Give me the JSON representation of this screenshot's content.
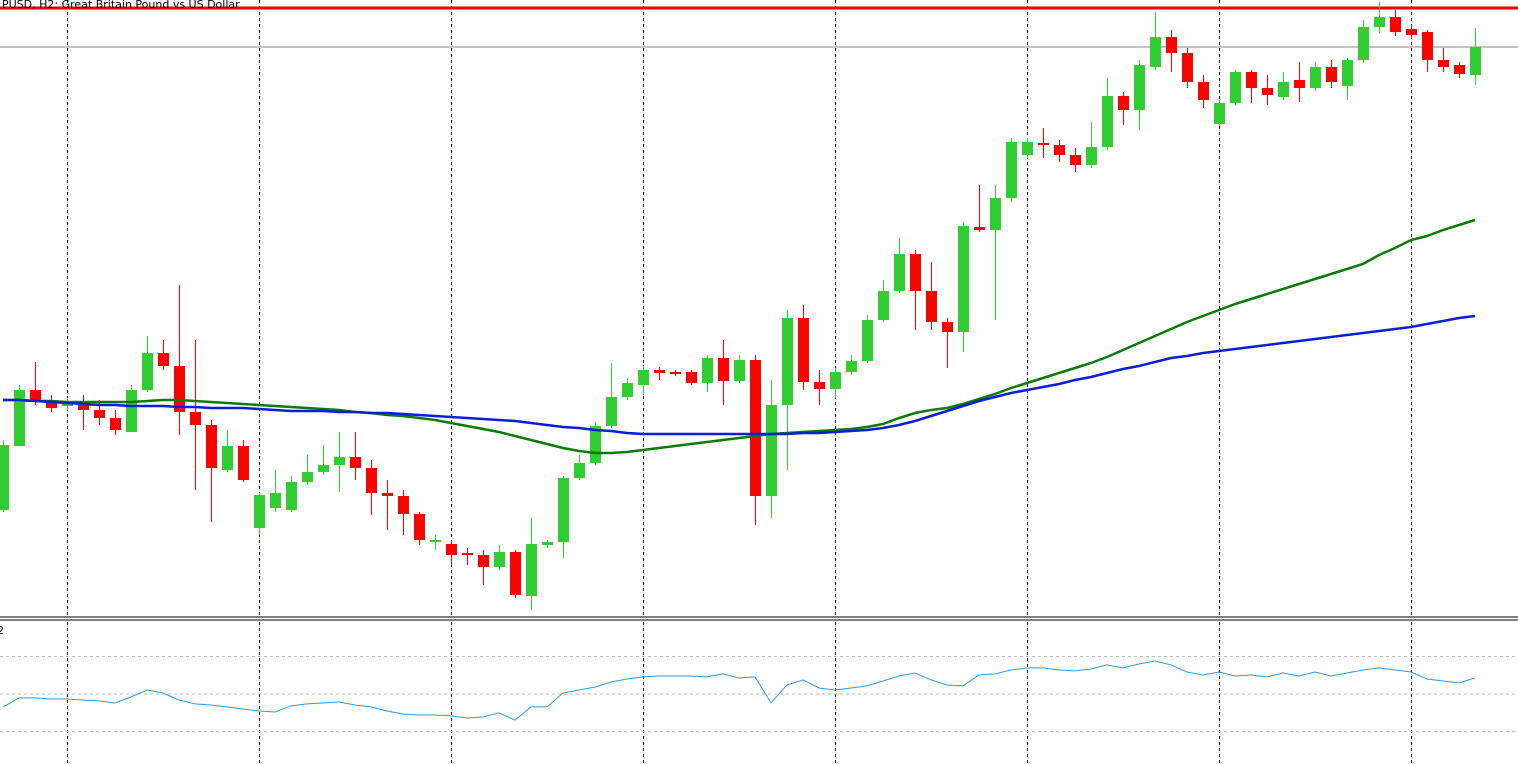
{
  "chart_data": [
    {
      "type": "candlestick",
      "title": "PUSD, H2: Great Britain Pound vs US Dollar",
      "up_color": "#32cd32",
      "down_color": "#ff0000",
      "ylim": [
        385,
        1000
      ],
      "grid": true,
      "open": [
        490,
        554,
        610,
        598,
        594,
        597,
        590,
        582,
        568,
        610,
        647,
        634,
        588,
        575,
        530,
        554,
        472,
        492,
        490,
        518,
        528,
        535,
        543,
        532,
        507,
        504,
        486,
        458,
        456,
        447,
        445,
        433,
        448,
        404,
        455,
        458,
        522,
        537,
        574,
        603,
        615,
        630,
        628,
        628,
        617,
        642,
        619,
        640,
        504,
        595,
        682,
        618,
        611,
        628,
        639,
        680,
        709,
        746,
        709,
        678,
        668,
        773,
        770,
        802,
        845,
        857,
        855,
        845,
        835,
        853,
        904,
        890,
        933,
        963,
        947,
        918,
        876,
        897,
        928,
        912,
        903,
        920,
        912,
        933,
        914,
        940,
        973,
        983,
        971,
        968,
        940,
        935,
        925
      ],
      "high": [
        560,
        615,
        638,
        605,
        602,
        605,
        600,
        590,
        615,
        664,
        660,
        715,
        660,
        580,
        570,
        560,
        507,
        530,
        524,
        545,
        555,
        568,
        568,
        540,
        520,
        510,
        488,
        465,
        460,
        452,
        450,
        455,
        450,
        482,
        460,
        524,
        545,
        578,
        637,
        622,
        635,
        633,
        630,
        630,
        645,
        660,
        645,
        645,
        620,
        690,
        695,
        630,
        632,
        645,
        685,
        720,
        762,
        750,
        738,
        682,
        778,
        815,
        815,
        862,
        862,
        872,
        860,
        852,
        878,
        922,
        908,
        940,
        988,
        970,
        952,
        925,
        900,
        930,
        930,
        925,
        928,
        938,
        938,
        940,
        942,
        980,
        998,
        990,
        975,
        970,
        952,
        938,
        972
      ],
      "low": [
        488,
        554,
        595,
        588,
        590,
        570,
        575,
        565,
        568,
        608,
        630,
        565,
        510,
        478,
        528,
        518,
        465,
        488,
        488,
        515,
        525,
        508,
        520,
        485,
        470,
        465,
        455,
        450,
        435,
        435,
        415,
        430,
        402,
        390,
        452,
        442,
        520,
        535,
        572,
        600,
        605,
        620,
        624,
        615,
        608,
        595,
        617,
        475,
        482,
        530,
        610,
        595,
        602,
        625,
        637,
        678,
        707,
        670,
        670,
        632,
        648,
        768,
        680,
        798,
        842,
        842,
        838,
        828,
        832,
        850,
        875,
        870,
        930,
        928,
        912,
        892,
        874,
        895,
        897,
        895,
        900,
        898,
        909,
        912,
        900,
        937,
        967,
        964,
        962,
        928,
        928,
        922,
        915
      ],
      "close": [
        555,
        610,
        598,
        592,
        596,
        590,
        582,
        570,
        610,
        647,
        634,
        588,
        575,
        532,
        554,
        520,
        505,
        507,
        518,
        528,
        535,
        543,
        532,
        507,
        504,
        486,
        460,
        460,
        445,
        445,
        433,
        448,
        405,
        456,
        458,
        522,
        537,
        574,
        603,
        617,
        630,
        627,
        626,
        617,
        642,
        619,
        640,
        504,
        595,
        682,
        618,
        611,
        628,
        639,
        680,
        709,
        746,
        709,
        678,
        668,
        774,
        770,
        802,
        858,
        858,
        855,
        845,
        835,
        853,
        904,
        890,
        935,
        963,
        947,
        918,
        900,
        897,
        928,
        912,
        905,
        918,
        912,
        933,
        918,
        940,
        973,
        983,
        968,
        965,
        940,
        933,
        926,
        953
      ],
      "lines": [
        {
          "color": "#0b7a0b",
          "values": [
            600,
            600,
            599,
            599,
            598,
            598,
            598,
            598,
            598,
            599,
            600,
            600,
            599,
            598,
            597,
            596,
            595,
            594,
            593,
            592,
            591,
            590,
            588,
            587,
            585,
            584,
            582,
            580,
            577,
            574,
            571,
            568,
            564,
            560,
            556,
            552,
            549,
            547,
            547,
            548,
            550,
            552,
            554,
            556,
            558,
            560,
            562,
            564,
            566,
            567,
            568,
            569,
            570,
            571,
            573,
            576,
            582,
            587,
            590,
            592,
            596,
            601,
            606,
            612,
            617,
            622,
            627,
            632,
            637,
            643,
            650,
            657,
            664,
            671,
            678,
            684,
            690,
            696,
            701,
            706,
            711,
            716,
            721,
            726,
            731,
            736,
            745,
            752,
            760,
            764,
            770,
            775,
            780
          ]
        },
        {
          "color": "#0a1ed6",
          "values": [
            600,
            600,
            599,
            598,
            597,
            596,
            595,
            595,
            594,
            594,
            594,
            593,
            593,
            592,
            592,
            592,
            591,
            590,
            589,
            589,
            589,
            588,
            588,
            587,
            587,
            586,
            585,
            584,
            583,
            582,
            581,
            580,
            579,
            577,
            575,
            573,
            572,
            570,
            569,
            567,
            566,
            566,
            566,
            566,
            566,
            566,
            566,
            566,
            566,
            566,
            567,
            567,
            568,
            569,
            570,
            572,
            575,
            579,
            584,
            589,
            594,
            599,
            603,
            607,
            610,
            613,
            616,
            620,
            623,
            627,
            631,
            634,
            638,
            642,
            644,
            647,
            649,
            651,
            653,
            655,
            657,
            659,
            661,
            663,
            665,
            667,
            669,
            671,
            673,
            676,
            679,
            682,
            684
          ]
        }
      ],
      "hlines": [
        {
          "value": 992,
          "color": "#ee0000"
        },
        {
          "value": 953,
          "color": "#8a8a8a"
        }
      ]
    },
    {
      "type": "line",
      "title": "2",
      "ylim": [
        12.1,
        88.4
      ],
      "levels": [
        30,
        50,
        70
      ],
      "grid": true,
      "series": [
        {
          "color": "#3399dd",
          "values": [
            43.1,
            47.9,
            47.9,
            47.3,
            47.3,
            46.8,
            46.3,
            45.2,
            48.4,
            52.1,
            50.5,
            46.8,
            44.7,
            44.1,
            43.1,
            42.0,
            40.9,
            40.4,
            43.6,
            44.7,
            45.2,
            45.7,
            44.1,
            43.1,
            40.9,
            39.3,
            38.8,
            38.8,
            38.3,
            37.2,
            37.7,
            39.9,
            36.1,
            43.1,
            43.1,
            50.5,
            52.1,
            53.7,
            56.4,
            58.0,
            59.1,
            59.6,
            59.6,
            59.6,
            59.1,
            60.7,
            58.5,
            59.1,
            45.2,
            54.8,
            57.5,
            53.2,
            52.1,
            53.2,
            54.3,
            56.9,
            59.6,
            61.2,
            57.5,
            54.8,
            54.3,
            60.1,
            60.7,
            62.8,
            63.9,
            63.9,
            62.8,
            62.3,
            63.3,
            65.5,
            63.9,
            66.0,
            67.6,
            65.5,
            61.7,
            60.1,
            61.7,
            59.6,
            60.1,
            59.1,
            61.2,
            59.6,
            61.7,
            59.6,
            61.2,
            62.8,
            63.9,
            62.8,
            61.7,
            58.0,
            56.9,
            55.9,
            58.5
          ]
        }
      ]
    }
  ]
}
